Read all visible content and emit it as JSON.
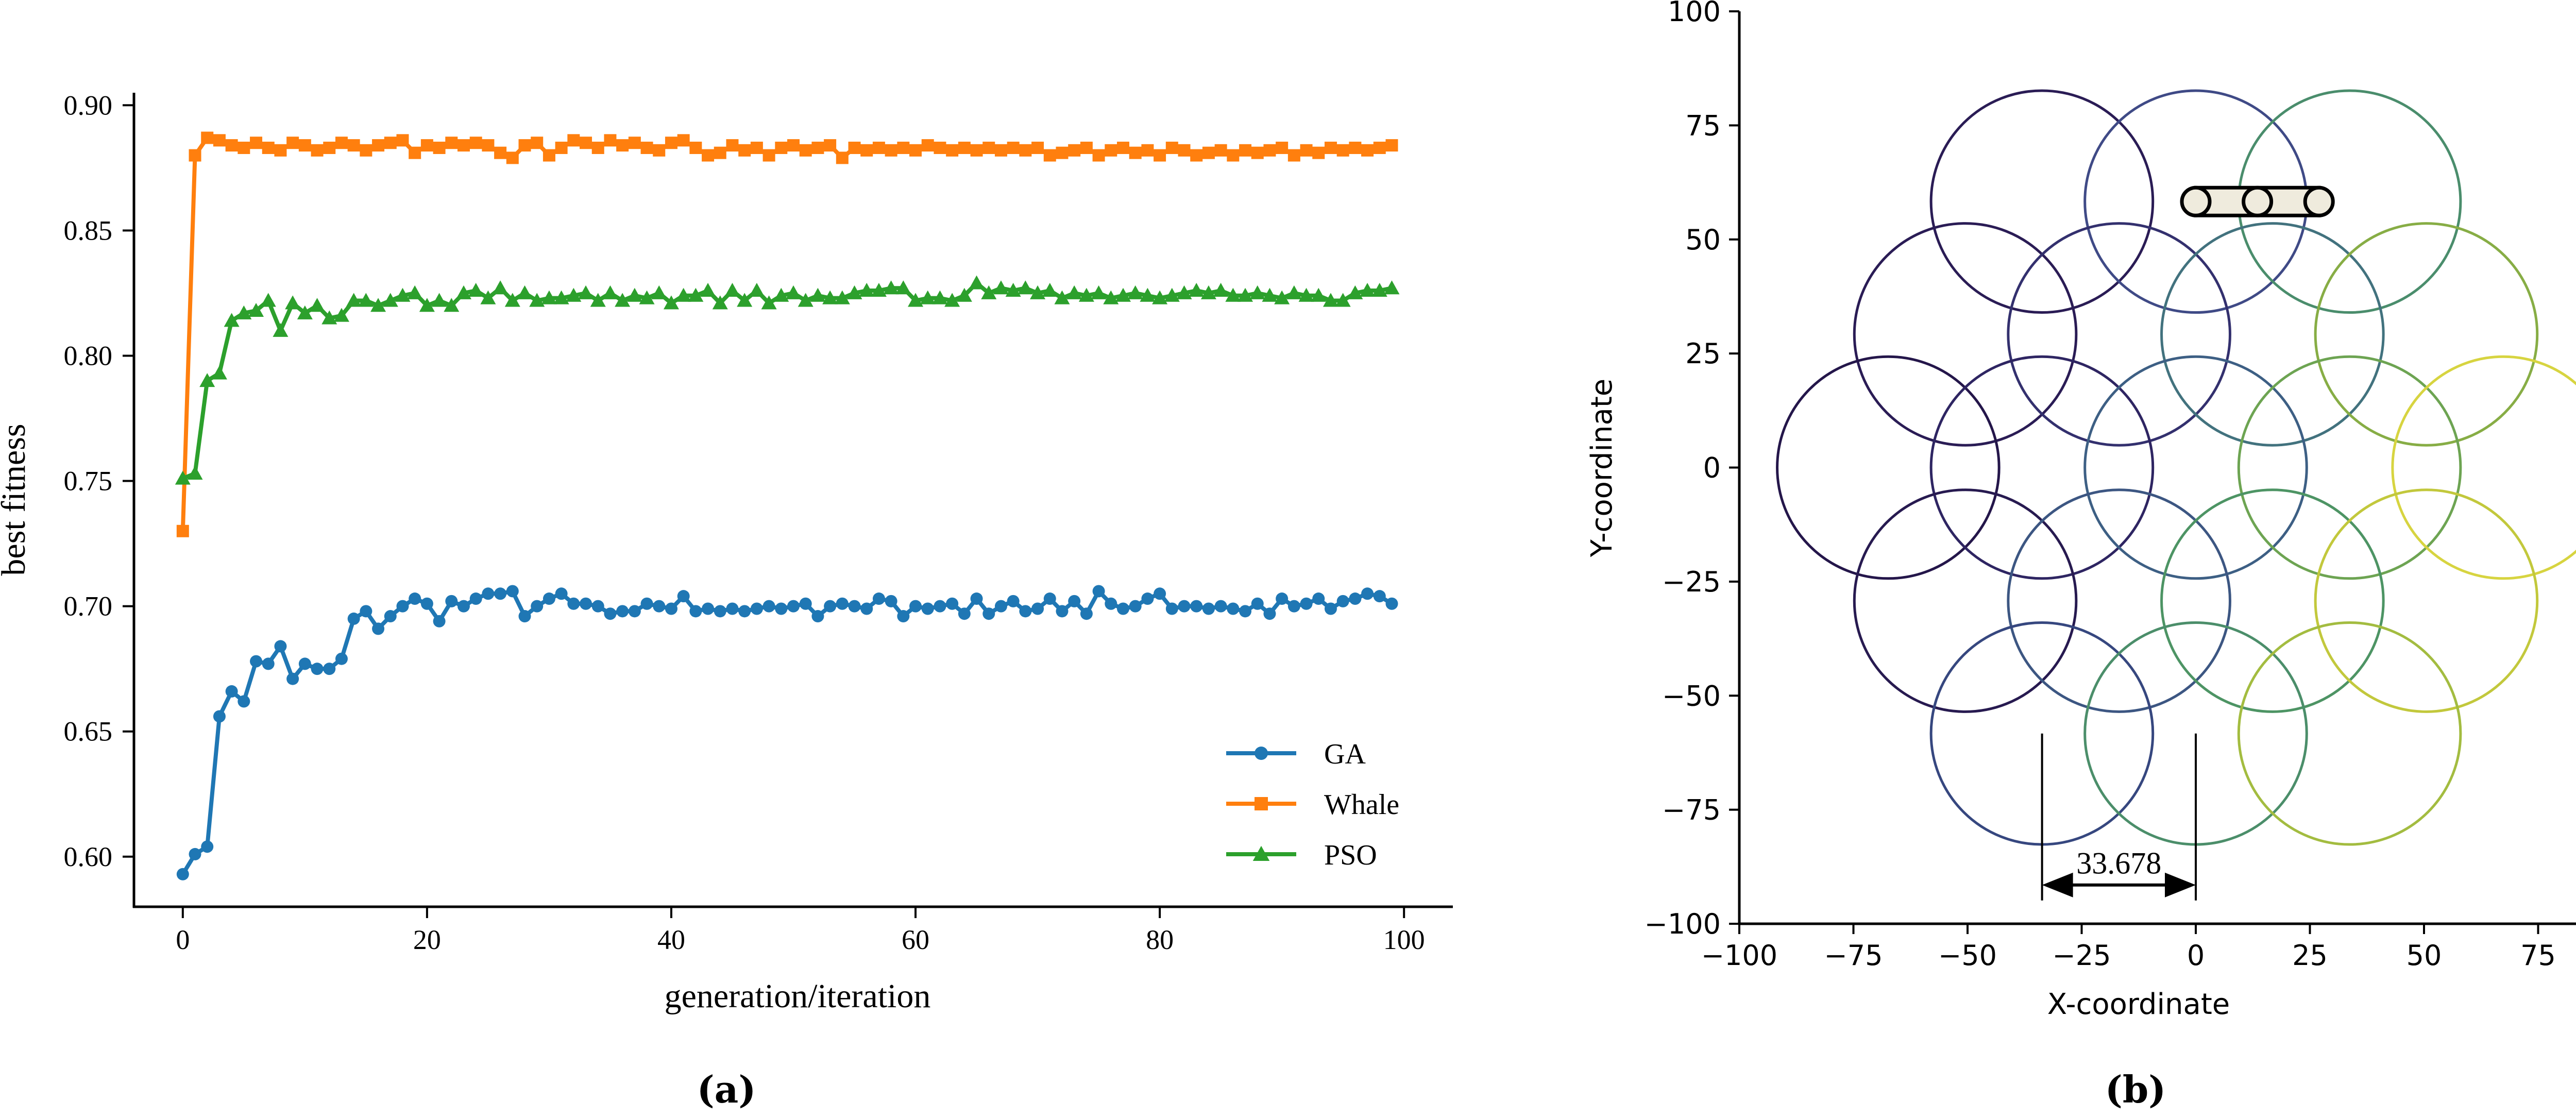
{
  "chart_data": [
    {
      "type": "line",
      "xlabel": "generation/iteration",
      "ylabel": "best fitness",
      "caption": "(a)",
      "xlim": [
        -4,
        104
      ],
      "ylim": [
        0.58,
        0.905
      ],
      "xticks": [
        0,
        20,
        40,
        60,
        80,
        100
      ],
      "yticks": [
        0.6,
        0.65,
        0.7,
        0.75,
        0.8,
        0.85,
        0.9
      ],
      "ytick_labels": [
        "0.60",
        "0.65",
        "0.70",
        "0.75",
        "0.80",
        "0.85",
        "0.90"
      ],
      "grid": false,
      "legend_position": "lower-right",
      "x": [
        0,
        1,
        2,
        3,
        4,
        5,
        6,
        7,
        8,
        9,
        10,
        11,
        12,
        13,
        14,
        15,
        16,
        17,
        18,
        19,
        20,
        21,
        22,
        23,
        24,
        25,
        26,
        27,
        28,
        29,
        30,
        31,
        32,
        33,
        34,
        35,
        36,
        37,
        38,
        39,
        40,
        41,
        42,
        43,
        44,
        45,
        46,
        47,
        48,
        49,
        50,
        51,
        52,
        53,
        54,
        55,
        56,
        57,
        58,
        59,
        60,
        61,
        62,
        63,
        64,
        65,
        66,
        67,
        68,
        69,
        70,
        71,
        72,
        73,
        74,
        75,
        76,
        77,
        78,
        79,
        80,
        81,
        82,
        83,
        84,
        85,
        86,
        87,
        88,
        89,
        90,
        91,
        92,
        93,
        94,
        95,
        96,
        97,
        98,
        99
      ],
      "series": [
        {
          "name": "GA",
          "color": "#1f77b4",
          "marker": "circle",
          "values": [
            0.593,
            0.601,
            0.604,
            0.656,
            0.666,
            0.662,
            0.678,
            0.677,
            0.684,
            0.671,
            0.677,
            0.675,
            0.675,
            0.679,
            0.695,
            0.698,
            0.691,
            0.696,
            0.7,
            0.703,
            0.701,
            0.694,
            0.702,
            0.7,
            0.703,
            0.705,
            0.705,
            0.706,
            0.696,
            0.7,
            0.703,
            0.705,
            0.701,
            0.701,
            0.7,
            0.697,
            0.698,
            0.698,
            0.701,
            0.7,
            0.699,
            0.704,
            0.698,
            0.699,
            0.698,
            0.699,
            0.698,
            0.699,
            0.7,
            0.699,
            0.7,
            0.701,
            0.696,
            0.7,
            0.701,
            0.7,
            0.699,
            0.703,
            0.702,
            0.696,
            0.7,
            0.699,
            0.7,
            0.701,
            0.697,
            0.703,
            0.697,
            0.7,
            0.702,
            0.698,
            0.699,
            0.703,
            0.698,
            0.702,
            0.697,
            0.706,
            0.701,
            0.699,
            0.7,
            0.703,
            0.705,
            0.699,
            0.7,
            0.7,
            0.699,
            0.7,
            0.699,
            0.698,
            0.701,
            0.697,
            0.703,
            0.7,
            0.701,
            0.703,
            0.699,
            0.702,
            0.703,
            0.705,
            0.704,
            0.701
          ]
        },
        {
          "name": "Whale",
          "color": "#ff7f0e",
          "marker": "square",
          "values": [
            0.73,
            0.88,
            0.887,
            0.886,
            0.884,
            0.883,
            0.885,
            0.883,
            0.882,
            0.885,
            0.884,
            0.882,
            0.883,
            0.885,
            0.884,
            0.882,
            0.884,
            0.885,
            0.886,
            0.881,
            0.884,
            0.883,
            0.885,
            0.884,
            0.885,
            0.884,
            0.881,
            0.879,
            0.884,
            0.885,
            0.88,
            0.883,
            0.886,
            0.885,
            0.883,
            0.886,
            0.884,
            0.885,
            0.883,
            0.882,
            0.885,
            0.886,
            0.883,
            0.88,
            0.881,
            0.884,
            0.882,
            0.883,
            0.88,
            0.883,
            0.884,
            0.882,
            0.883,
            0.884,
            0.879,
            0.883,
            0.882,
            0.883,
            0.882,
            0.883,
            0.882,
            0.884,
            0.883,
            0.882,
            0.883,
            0.882,
            0.883,
            0.882,
            0.883,
            0.882,
            0.883,
            0.88,
            0.881,
            0.882,
            0.883,
            0.88,
            0.882,
            0.883,
            0.881,
            0.882,
            0.88,
            0.883,
            0.882,
            0.88,
            0.881,
            0.882,
            0.88,
            0.882,
            0.881,
            0.882,
            0.883,
            0.88,
            0.882,
            0.881,
            0.883,
            0.882,
            0.883,
            0.882,
            0.883,
            0.884
          ]
        },
        {
          "name": "PSO",
          "color": "#2ca02c",
          "marker": "triangle",
          "values": [
            0.751,
            0.753,
            0.79,
            0.793,
            0.814,
            0.817,
            0.818,
            0.822,
            0.81,
            0.821,
            0.817,
            0.82,
            0.815,
            0.816,
            0.822,
            0.822,
            0.82,
            0.822,
            0.824,
            0.825,
            0.82,
            0.822,
            0.82,
            0.825,
            0.826,
            0.823,
            0.827,
            0.822,
            0.825,
            0.822,
            0.823,
            0.823,
            0.824,
            0.825,
            0.822,
            0.825,
            0.822,
            0.824,
            0.823,
            0.825,
            0.821,
            0.824,
            0.824,
            0.826,
            0.821,
            0.826,
            0.822,
            0.826,
            0.821,
            0.824,
            0.825,
            0.822,
            0.824,
            0.823,
            0.823,
            0.825,
            0.826,
            0.826,
            0.827,
            0.827,
            0.822,
            0.823,
            0.823,
            0.822,
            0.824,
            0.829,
            0.825,
            0.827,
            0.826,
            0.827,
            0.825,
            0.826,
            0.823,
            0.825,
            0.824,
            0.825,
            0.823,
            0.824,
            0.825,
            0.824,
            0.823,
            0.824,
            0.825,
            0.826,
            0.825,
            0.826,
            0.824,
            0.824,
            0.825,
            0.824,
            0.823,
            0.825,
            0.824,
            0.824,
            0.822,
            0.822,
            0.825,
            0.826,
            0.826,
            0.827
          ]
        }
      ]
    },
    {
      "type": "scatter",
      "xlabel": "X-coordinate",
      "ylabel": "Y-coordinate",
      "caption": "(b)",
      "xlim": [
        -100,
        100
      ],
      "ylim": [
        -100,
        100
      ],
      "xticks": [
        -100,
        -75,
        -50,
        -25,
        0,
        25,
        50,
        75,
        100
      ],
      "yticks": [
        -100,
        -75,
        -50,
        -25,
        0,
        25,
        50,
        75,
        100
      ],
      "xtick_labels": [
        "−100",
        "−75",
        "−50",
        "−25",
        "0",
        "25",
        "50",
        "75",
        "100"
      ],
      "ytick_labels": [
        "−100",
        "−75",
        "−50",
        "−25",
        "0",
        "25",
        "50",
        "75",
        "100"
      ],
      "grid": false,
      "circle_radius": 24.3,
      "circles": [
        {
          "x": -33.7,
          "y": 58.3,
          "color": "#2a1c55"
        },
        {
          "x": 0.0,
          "y": 58.3,
          "color": "#3f4a86"
        },
        {
          "x": 33.7,
          "y": 58.3,
          "color": "#4a8d6c"
        },
        {
          "x": -50.5,
          "y": 29.2,
          "color": "#2a1c55"
        },
        {
          "x": -16.8,
          "y": 29.2,
          "color": "#33306e"
        },
        {
          "x": 16.8,
          "y": 29.2,
          "color": "#42727e"
        },
        {
          "x": 50.5,
          "y": 29.2,
          "color": "#87ad45"
        },
        {
          "x": -67.4,
          "y": 0.0,
          "color": "#24164a"
        },
        {
          "x": -33.7,
          "y": 0.0,
          "color": "#2e2562"
        },
        {
          "x": 0.0,
          "y": 0.0,
          "color": "#3d5f84"
        },
        {
          "x": 33.7,
          "y": 0.0,
          "color": "#6da452"
        },
        {
          "x": 67.4,
          "y": 0.0,
          "color": "#d7d440"
        },
        {
          "x": -50.5,
          "y": -29.2,
          "color": "#271a50"
        },
        {
          "x": -16.8,
          "y": -29.2,
          "color": "#3c5682"
        },
        {
          "x": 16.8,
          "y": -29.2,
          "color": "#4d9464"
        },
        {
          "x": 50.5,
          "y": -29.2,
          "color": "#c2c83c"
        },
        {
          "x": -33.7,
          "y": -58.3,
          "color": "#36477f"
        },
        {
          "x": 0.0,
          "y": -58.3,
          "color": "#4b8e6a"
        },
        {
          "x": 33.7,
          "y": -58.3,
          "color": "#a3bc40"
        }
      ],
      "uav_nodes": [
        {
          "x": 0,
          "y": 58.3
        },
        {
          "x": 13.5,
          "y": 58.3
        },
        {
          "x": 27,
          "y": 58.3
        }
      ],
      "dimension": {
        "from_x": -33.678,
        "to_x": 0.0,
        "y": -91.5,
        "label": "33.678"
      }
    }
  ]
}
